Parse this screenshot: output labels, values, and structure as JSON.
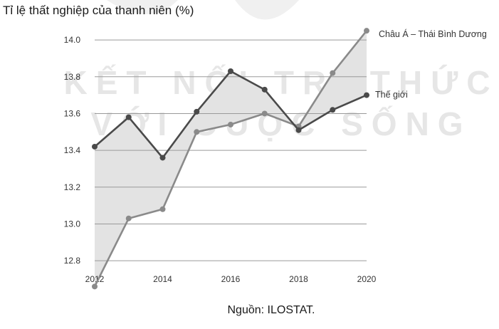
{
  "chart_data": {
    "type": "line",
    "ylabel": "Tỉ lệ thất nghiệp của thanh niên (%)",
    "x": [
      2012,
      2013,
      2014,
      2015,
      2016,
      2017,
      2018,
      2019,
      2020
    ],
    "xticks": [
      2012,
      2014,
      2016,
      2018,
      2020
    ],
    "yticks": [
      12.8,
      13.0,
      13.2,
      13.4,
      13.6,
      13.8,
      14.0
    ],
    "xlim": [
      2012,
      2020
    ],
    "ylim": [
      12.7,
      14.07
    ],
    "grid": "horizontal",
    "series": [
      {
        "name": "Châu Á – Thái Bình Dương",
        "values": [
          12.66,
          13.03,
          13.08,
          13.5,
          13.54,
          13.6,
          13.53,
          13.82,
          14.05
        ],
        "color": "#8a8a8a"
      },
      {
        "name": "Thế giới",
        "values": [
          13.42,
          13.58,
          13.36,
          13.61,
          13.83,
          13.73,
          13.51,
          13.62,
          13.7
        ],
        "color": "#4a4a4a"
      }
    ],
    "fill_between": {
      "color": "#e3e3e3"
    },
    "source": "Nguồn: ILOSTAT.",
    "watermark": [
      "KẾT NỐI TRI THỨC",
      "VỚI CUỘC SỐNG"
    ]
  }
}
